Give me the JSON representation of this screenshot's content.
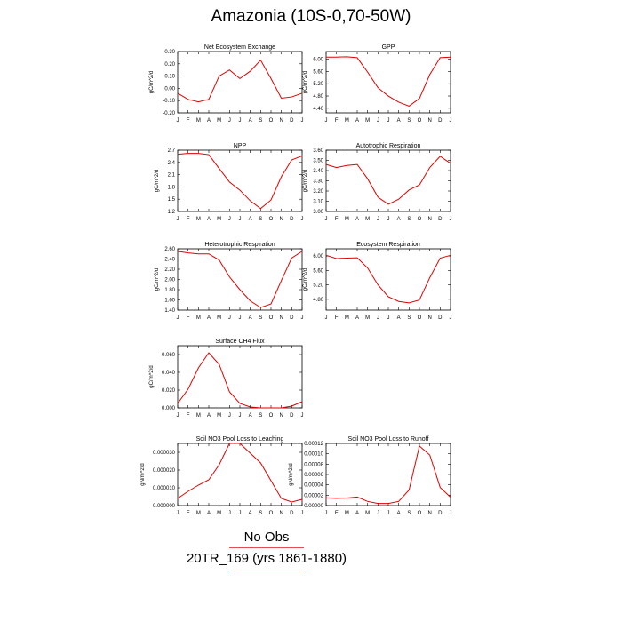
{
  "title": "Amazonia (10S-0,70-50W)",
  "legend": {
    "obs_label": "No Obs",
    "model_label": "20TR_169 (yrs 1861-1880)",
    "model_color": "#e00000"
  },
  "chart_data": [
    {
      "type": "line",
      "title": "Net Ecosystem Exchange",
      "ylabel": "gC/m^2/d",
      "categories": [
        "J",
        "F",
        "M",
        "A",
        "M",
        "J",
        "J",
        "A",
        "S",
        "O",
        "N",
        "D",
        "J"
      ],
      "ylim": [
        -0.2,
        0.3
      ],
      "yticks": [
        -0.2,
        -0.1,
        0.0,
        0.1,
        0.2,
        0.3
      ],
      "ytick_labels": [
        "-0.20",
        "-0.10",
        "0.00",
        "0.10",
        "0.20",
        "0.30"
      ],
      "values": [
        -0.04,
        -0.09,
        -0.11,
        -0.09,
        0.1,
        0.15,
        0.08,
        0.14,
        0.23,
        0.08,
        -0.08,
        -0.07,
        -0.04
      ]
    },
    {
      "type": "line",
      "title": "GPP",
      "ylabel": "gC/m^2/d",
      "categories": [
        "J",
        "F",
        "M",
        "A",
        "M",
        "J",
        "J",
        "A",
        "S",
        "O",
        "N",
        "D",
        "J"
      ],
      "ylim": [
        4.25,
        6.25
      ],
      "yticks": [
        4.4,
        4.8,
        5.2,
        5.6,
        6.0
      ],
      "ytick_labels": [
        "4.40",
        "4.80",
        "5.20",
        "5.60",
        "6.00"
      ],
      "values": [
        6.07,
        6.07,
        6.08,
        6.05,
        5.58,
        5.07,
        4.8,
        4.6,
        4.47,
        4.72,
        5.5,
        6.05,
        6.07
      ]
    },
    {
      "type": "line",
      "title": "NPP",
      "ylabel": "gC/m^2/d",
      "categories": [
        "J",
        "F",
        "M",
        "A",
        "M",
        "J",
        "J",
        "A",
        "S",
        "O",
        "N",
        "D",
        "J"
      ],
      "ylim": [
        1.2,
        2.7
      ],
      "yticks": [
        1.2,
        1.5,
        1.8,
        2.1,
        2.4,
        2.7
      ],
      "ytick_labels": [
        "1.2",
        "1.5",
        "1.8",
        "2.1",
        "2.4",
        "2.7"
      ],
      "values": [
        2.6,
        2.62,
        2.62,
        2.59,
        2.25,
        1.92,
        1.72,
        1.46,
        1.27,
        1.48,
        2.05,
        2.46,
        2.56
      ]
    },
    {
      "type": "line",
      "title": "Autotrophic Respiration",
      "ylabel": "gC/m^2/d",
      "categories": [
        "J",
        "F",
        "M",
        "A",
        "M",
        "J",
        "J",
        "A",
        "S",
        "O",
        "N",
        "D",
        "J"
      ],
      "ylim": [
        3.0,
        3.6
      ],
      "yticks": [
        3.0,
        3.1,
        3.2,
        3.3,
        3.4,
        3.5,
        3.6
      ],
      "ytick_labels": [
        "3.00",
        "3.10",
        "3.20",
        "3.30",
        "3.40",
        "3.50",
        "3.60"
      ],
      "values": [
        3.46,
        3.43,
        3.45,
        3.46,
        3.32,
        3.14,
        3.07,
        3.12,
        3.21,
        3.26,
        3.43,
        3.54,
        3.47
      ]
    },
    {
      "type": "line",
      "title": "Heterotrophic Respiration",
      "ylabel": "gC/m^2/d",
      "categories": [
        "J",
        "F",
        "M",
        "A",
        "M",
        "J",
        "J",
        "A",
        "S",
        "O",
        "N",
        "D",
        "J"
      ],
      "ylim": [
        1.4,
        2.6
      ],
      "yticks": [
        1.4,
        1.6,
        1.8,
        2.0,
        2.2,
        2.4,
        2.6
      ],
      "ytick_labels": [
        "1.40",
        "1.60",
        "1.80",
        "2.00",
        "2.20",
        "2.40",
        "2.60"
      ],
      "values": [
        2.55,
        2.52,
        2.5,
        2.5,
        2.38,
        2.05,
        1.8,
        1.58,
        1.45,
        1.52,
        1.98,
        2.42,
        2.55
      ]
    },
    {
      "type": "line",
      "title": "Ecosystem Respiration",
      "ylabel": "gC/m^2/d",
      "categories": [
        "J",
        "F",
        "M",
        "A",
        "M",
        "J",
        "J",
        "A",
        "S",
        "O",
        "N",
        "D",
        "J"
      ],
      "ylim": [
        4.5,
        6.2
      ],
      "yticks": [
        4.8,
        5.2,
        5.6,
        6.0
      ],
      "ytick_labels": [
        "4.80",
        "5.20",
        "5.60",
        "6.00"
      ],
      "values": [
        6.02,
        5.93,
        5.94,
        5.95,
        5.67,
        5.2,
        4.87,
        4.74,
        4.7,
        4.78,
        5.4,
        5.94,
        6.02
      ]
    },
    {
      "type": "line",
      "title": "Surface CH4 Flux",
      "ylabel": "gC/m^2/d",
      "categories": [
        "J",
        "F",
        "M",
        "A",
        "M",
        "J",
        "J",
        "A",
        "S",
        "O",
        "N",
        "D",
        "J"
      ],
      "ylim": [
        0.0,
        0.07
      ],
      "yticks": [
        0.0,
        0.02,
        0.04,
        0.06
      ],
      "ytick_labels": [
        "0.000",
        "0.020",
        "0.040",
        "0.060"
      ],
      "values": [
        0.005,
        0.021,
        0.045,
        0.062,
        0.049,
        0.018,
        0.005,
        0.001,
        0.0,
        0.0,
        0.0,
        0.002,
        0.007
      ]
    },
    {
      "type": "line",
      "title": "Soil NO3 Pool Loss to Leaching",
      "ylabel": "gN/m^2/d",
      "categories": [
        "J",
        "F",
        "M",
        "A",
        "M",
        "J",
        "J",
        "A",
        "S",
        "O",
        "N",
        "D",
        "J"
      ],
      "ylim": [
        0.0,
        3.5e-05
      ],
      "yticks": [
        0.0,
        1e-05,
        2e-05,
        3e-05
      ],
      "ytick_labels": [
        "0.000000",
        "0.000010",
        "0.000020",
        "0.000030"
      ],
      "values": [
        4e-06,
        8e-06,
        1.15e-05,
        1.45e-05,
        2.3e-05,
        3.5e-05,
        3.5e-05,
        2.95e-05,
        2.4e-05,
        1.4e-05,
        4e-06,
        2e-06,
        3.5e-06
      ]
    },
    {
      "type": "line",
      "title": "Soil NO3 Pool Loss to Runoff",
      "ylabel": "gN/m^2/d",
      "categories": [
        "J",
        "F",
        "M",
        "A",
        "M",
        "J",
        "J",
        "A",
        "S",
        "O",
        "N",
        "D",
        "J"
      ],
      "ylim": [
        0.0,
        0.00012
      ],
      "yticks": [
        0.0,
        2e-05,
        4e-05,
        6e-05,
        8e-05,
        0.0001,
        0.00012
      ],
      "ytick_labels": [
        "0.00000",
        "0.00002",
        "0.00004",
        "0.00006",
        "0.00008",
        "0.00010",
        "0.00012"
      ],
      "values": [
        1.5e-05,
        1.4e-05,
        1.45e-05,
        1.65e-05,
        8e-06,
        4e-06,
        4e-06,
        8e-06,
        3e-05,
        0.000115,
        9.75e-05,
        3.5e-05,
        1.6e-05
      ]
    }
  ]
}
